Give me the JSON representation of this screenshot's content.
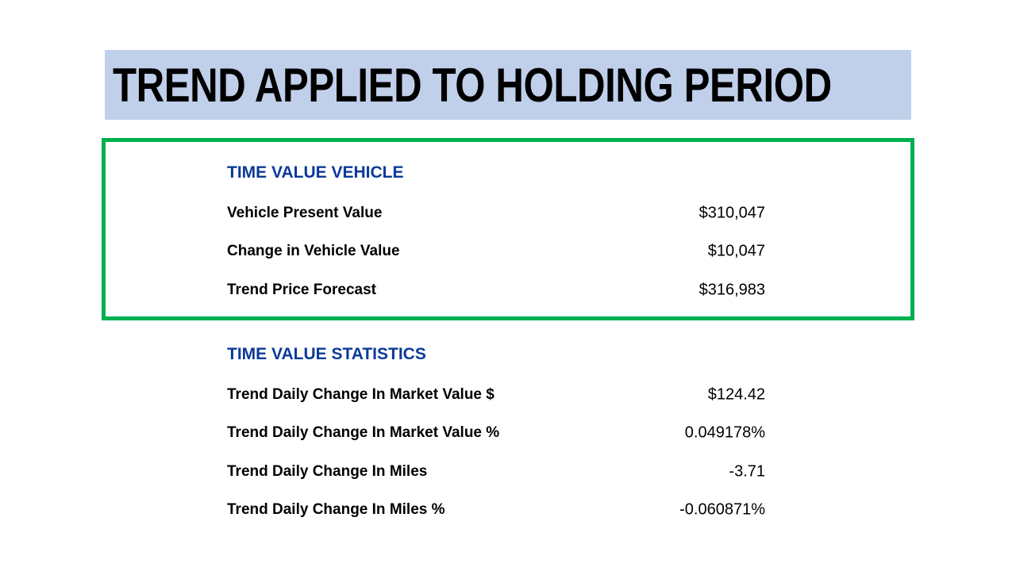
{
  "title": "TREND APPLIED TO HOLDING PERIOD",
  "vehicle": {
    "heading": "TIME VALUE VEHICLE",
    "rows": [
      {
        "label": "Vehicle Present Value",
        "value": "$310,047"
      },
      {
        "label": "Change in Vehicle Value",
        "value": "$10,047"
      },
      {
        "label": "Trend Price Forecast",
        "value": "$316,983"
      }
    ]
  },
  "statistics": {
    "heading": "TIME VALUE STATISTICS",
    "rows": [
      {
        "label": "Trend Daily Change In Market Value $",
        "value": "$124.42"
      },
      {
        "label": "Trend Daily Change In Market Value %",
        "value": "0.049178%"
      },
      {
        "label": "Trend Daily Change In Miles",
        "value": "-3.71"
      },
      {
        "label": "Trend Daily Change In Miles %",
        "value": "-0.060871%"
      }
    ]
  },
  "colors": {
    "title_bg": "#c0cfea",
    "box_border": "#00b050",
    "heading": "#0b3a9a"
  }
}
